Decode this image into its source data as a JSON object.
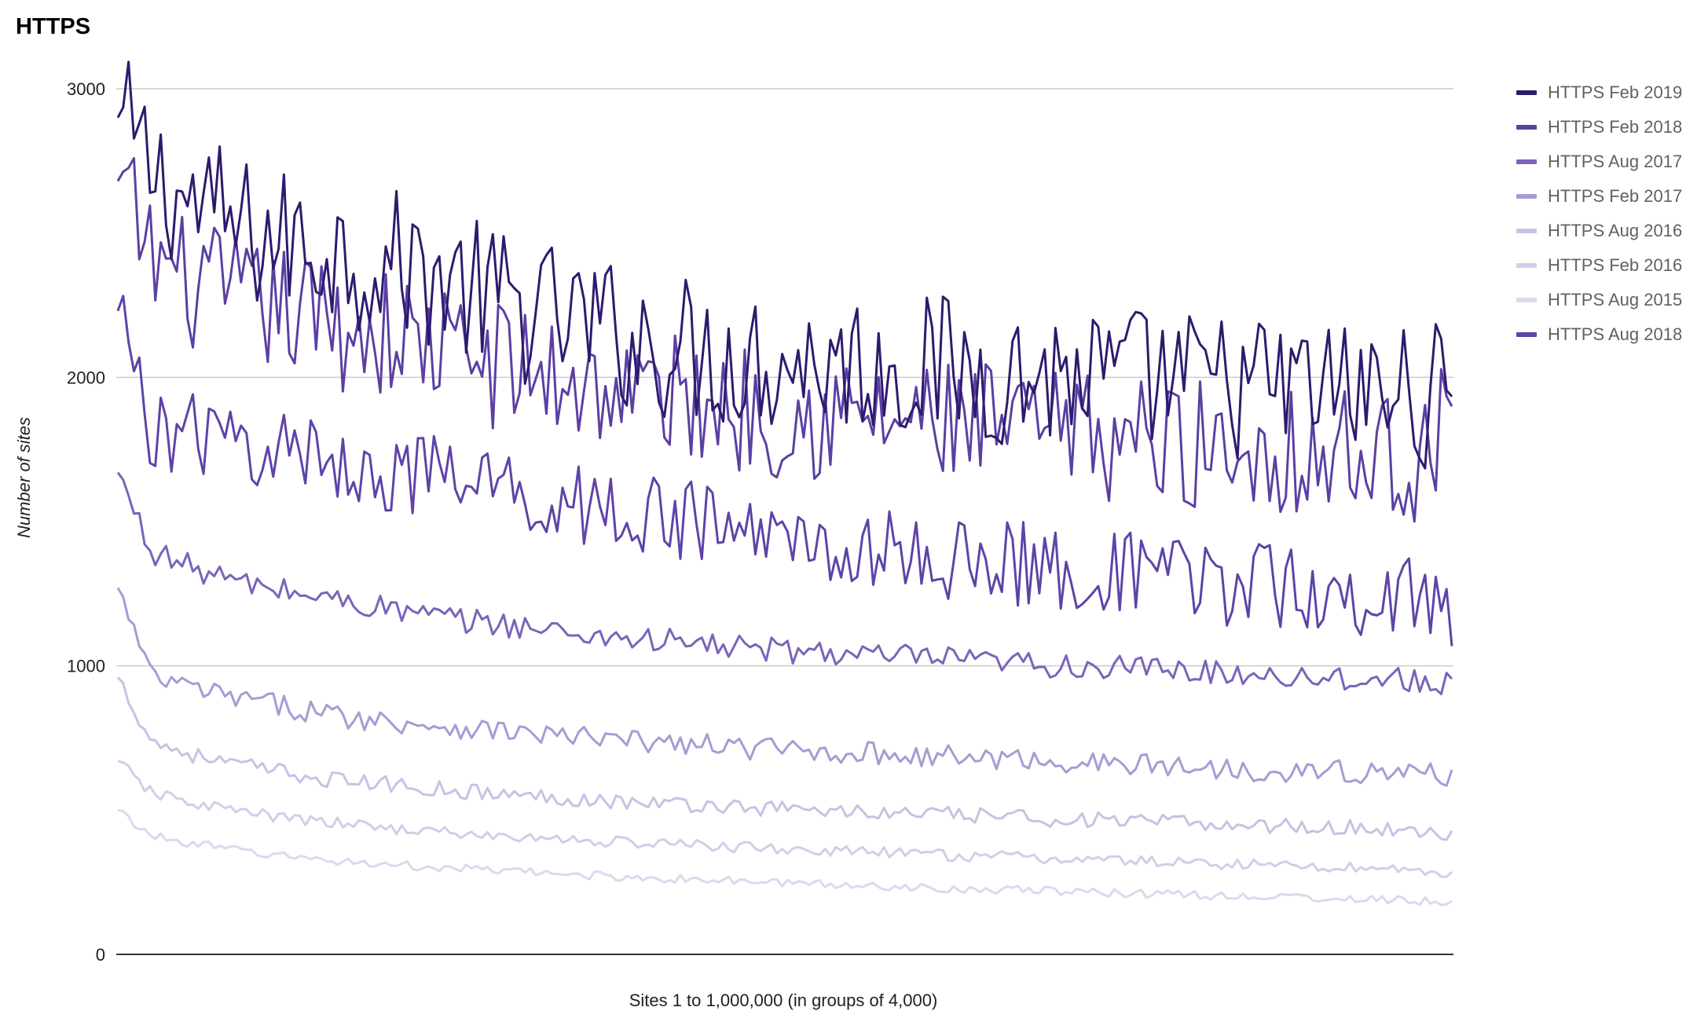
{
  "chart_data": {
    "type": "line",
    "title": "HTTPS",
    "xlabel": "Sites 1 to 1,000,000 (in groups of 4,000)",
    "ylabel": "Number of sites",
    "ylim": [
      0,
      3000
    ],
    "yticks": [
      0,
      1000,
      2000,
      3000
    ],
    "xlim": [
      1,
      250
    ],
    "grid": "horizontal",
    "legend_position": "right",
    "series": [
      {
        "name": "HTTPS Feb 2019",
        "color": "#2e1a6e",
        "values": [
          2900,
          2720,
          2610,
          2560,
          2490,
          2470,
          2460,
          2420,
          2400,
          2380,
          2330,
          2280,
          2240,
          2210,
          2180,
          2150,
          2120,
          2100,
          2080,
          2070,
          2060,
          2060,
          2050,
          2040,
          2040,
          2030,
          2020,
          2010,
          2010,
          2000,
          1990,
          1990,
          1980,
          1970,
          1970,
          1960,
          1960,
          1950,
          1940,
          1940,
          1930
        ]
      },
      {
        "name": "HTTPS Feb 2018",
        "color": "#5b3fa3",
        "values": [
          2680,
          2420,
          2330,
          2290,
          2250,
          2230,
          2200,
          2170,
          2150,
          2120,
          2090,
          2060,
          2030,
          2000,
          1980,
          1960,
          1940,
          1920,
          1910,
          1890,
          1880,
          1870,
          1860,
          1850,
          1840,
          1830,
          1820,
          1810,
          1800,
          1800,
          1790,
          1780,
          1770,
          1760,
          1760,
          1750,
          1740,
          1730,
          1730,
          1720,
          1860
        ]
      },
      {
        "name": "HTTPS Aug 2017",
        "color": "#7b64ba",
        "values": [
          1670,
          1400,
          1350,
          1310,
          1280,
          1260,
          1240,
          1220,
          1200,
          1180,
          1160,
          1150,
          1140,
          1120,
          1110,
          1100,
          1090,
          1080,
          1070,
          1060,
          1050,
          1050,
          1040,
          1030,
          1030,
          1020,
          1010,
          1010,
          1000,
          1000,
          990,
          990,
          980,
          980,
          970,
          970,
          960,
          960,
          950,
          950,
          940
        ]
      },
      {
        "name": "HTTPS Feb 2017",
        "color": "#a89bd3",
        "values": [
          1270,
          960,
          930,
          900,
          880,
          860,
          840,
          820,
          810,
          800,
          790,
          780,
          770,
          760,
          750,
          740,
          735,
          730,
          720,
          715,
          710,
          705,
          700,
          695,
          690,
          685,
          680,
          675,
          670,
          665,
          660,
          655,
          650,
          645,
          640,
          638,
          635,
          632,
          630,
          628,
          620
        ]
      },
      {
        "name": "HTTPS Aug 2016",
        "color": "#c9c1e4",
        "values": [
          960,
          740,
          700,
          670,
          650,
          630,
          610,
          600,
          590,
          580,
          570,
          560,
          550,
          545,
          540,
          530,
          525,
          520,
          515,
          510,
          505,
          500,
          495,
          490,
          487,
          483,
          480,
          475,
          470,
          466,
          462,
          458,
          455,
          452,
          448,
          445,
          442,
          438,
          435,
          432,
          410
        ]
      },
      {
        "name": "HTTPS Feb 2016",
        "color": "#d3cde8",
        "values": [
          670,
          560,
          530,
          510,
          490,
          470,
          460,
          450,
          440,
          430,
          420,
          410,
          405,
          400,
          395,
          390,
          385,
          380,
          375,
          370,
          365,
          360,
          356,
          352,
          348,
          344,
          340,
          336,
          332,
          328,
          325,
          322,
          318,
          315,
          312,
          308,
          305,
          302,
          298,
          295,
          270
        ]
      },
      {
        "name": "HTTPS Aug 2015",
        "color": "#ddd8ed",
        "values": [
          500,
          410,
          390,
          370,
          355,
          340,
          330,
          320,
          312,
          305,
          298,
          292,
          286,
          280,
          275,
          270,
          265,
          260,
          256,
          252,
          248,
          244,
          240,
          236,
          232,
          229,
          226,
          222,
          219,
          216,
          213,
          210,
          207,
          204,
          201,
          198,
          195,
          192,
          189,
          186,
          170
        ]
      },
      {
        "name": "HTTPS Aug 2018",
        "color": "#5e43a8",
        "values": [
          2230,
          1830,
          1800,
          1780,
          1760,
          1740,
          1720,
          1700,
          1680,
          1660,
          1640,
          1620,
          1600,
          1580,
          1560,
          1540,
          1520,
          1500,
          1480,
          1460,
          1440,
          1430,
          1410,
          1390,
          1380,
          1370,
          1360,
          1350,
          1340,
          1330,
          1320,
          1310,
          1300,
          1290,
          1280,
          1270,
          1260,
          1250,
          1240,
          1230,
          1200
        ]
      }
    ]
  }
}
